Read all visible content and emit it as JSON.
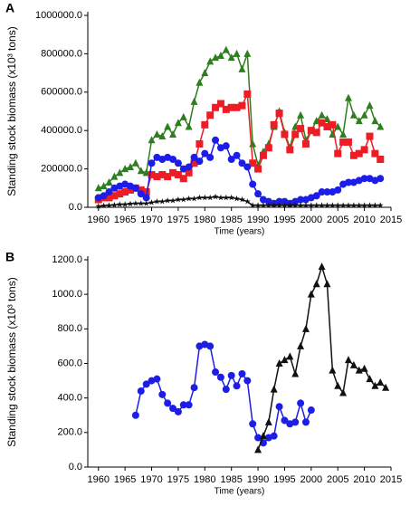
{
  "chart_data": [
    {
      "type": "line",
      "panel_label": "A",
      "xlabel": "Time (years)",
      "ylabel": "Standing stock biomass (x10³ tons)",
      "x": [
        1960,
        1961,
        1962,
        1963,
        1964,
        1965,
        1966,
        1967,
        1968,
        1969,
        1970,
        1971,
        1972,
        1973,
        1974,
        1975,
        1976,
        1977,
        1978,
        1979,
        1980,
        1981,
        1982,
        1983,
        1984,
        1985,
        1986,
        1987,
        1988,
        1989,
        1990,
        1991,
        1992,
        1993,
        1994,
        1995,
        1996,
        1997,
        1998,
        1999,
        2000,
        2001,
        2002,
        2003,
        2004,
        2005,
        2006,
        2007,
        2008,
        2009,
        2010,
        2011,
        2012,
        2013
      ],
      "series": [
        {
          "color": "#2e7d1e",
          "marker": "triangle",
          "values": [
            100000,
            110000,
            130000,
            160000,
            180000,
            200000,
            210000,
            230000,
            190000,
            180000,
            350000,
            380000,
            370000,
            420000,
            380000,
            440000,
            470000,
            420000,
            550000,
            650000,
            700000,
            760000,
            780000,
            790000,
            820000,
            780000,
            800000,
            720000,
            800000,
            330000,
            220000,
            290000,
            330000,
            420000,
            500000,
            390000,
            310000,
            420000,
            480000,
            350000,
            400000,
            450000,
            480000,
            460000,
            380000,
            420000,
            380000,
            570000,
            480000,
            450000,
            480000,
            530000,
            450000,
            420000
          ]
        },
        {
          "color": "#ee1c25",
          "marker": "square",
          "values": [
            40000,
            50000,
            50000,
            60000,
            70000,
            80000,
            90000,
            100000,
            90000,
            80000,
            170000,
            160000,
            170000,
            160000,
            180000,
            170000,
            150000,
            180000,
            230000,
            330000,
            430000,
            480000,
            520000,
            540000,
            510000,
            520000,
            520000,
            530000,
            590000,
            230000,
            200000,
            270000,
            310000,
            430000,
            490000,
            380000,
            300000,
            380000,
            410000,
            330000,
            400000,
            390000,
            440000,
            420000,
            430000,
            280000,
            340000,
            340000,
            270000,
            280000,
            300000,
            370000,
            280000,
            250000
          ]
        },
        {
          "color": "#1d1de8",
          "marker": "circle",
          "values": [
            50000,
            60000,
            80000,
            100000,
            110000,
            120000,
            110000,
            100000,
            70000,
            50000,
            230000,
            260000,
            250000,
            260000,
            250000,
            230000,
            200000,
            210000,
            260000,
            240000,
            280000,
            260000,
            350000,
            310000,
            320000,
            250000,
            270000,
            230000,
            210000,
            120000,
            70000,
            40000,
            30000,
            20000,
            30000,
            30000,
            20000,
            30000,
            40000,
            40000,
            50000,
            60000,
            80000,
            80000,
            80000,
            90000,
            120000,
            130000,
            130000,
            140000,
            150000,
            150000,
            140000,
            150000
          ]
        },
        {
          "color": "#111111",
          "marker": "star",
          "values": [
            5000,
            8000,
            10000,
            12000,
            15000,
            15000,
            18000,
            20000,
            20000,
            20000,
            25000,
            30000,
            30000,
            35000,
            35000,
            40000,
            40000,
            45000,
            45000,
            50000,
            50000,
            50000,
            55000,
            50000,
            50000,
            50000,
            45000,
            40000,
            30000,
            10000,
            10000,
            10000,
            10000,
            10000,
            10000,
            10000,
            10000,
            10000,
            10000,
            10000,
            10000,
            10000,
            10000,
            10000,
            10000,
            10000,
            10000,
            10000,
            10000,
            10000,
            10000,
            10000,
            10000,
            10000
          ]
        }
      ],
      "xlim": [
        1958,
        2015
      ],
      "xticks": [
        1960,
        1965,
        1970,
        1975,
        1980,
        1985,
        1990,
        1995,
        2000,
        2005,
        2010,
        2015
      ],
      "ylim": [
        0,
        1000000
      ],
      "yticks": [
        {
          "value": 0,
          "label": "0.0"
        },
        {
          "value": 200000,
          "label": "200000.0"
        },
        {
          "value": 400000,
          "label": "400000.0"
        },
        {
          "value": 600000,
          "label": "600000.0"
        },
        {
          "value": 800000,
          "label": "800000.0"
        },
        {
          "value": 1000000,
          "label": "1000000.0"
        }
      ]
    },
    {
      "type": "line",
      "panel_label": "B",
      "xlabel": "Time (years)",
      "ylabel": "Standing stock biomass (x10³ tons)",
      "series": [
        {
          "color": "#1d1de8",
          "marker": "circle",
          "x": [
            1967,
            1968,
            1969,
            1970,
            1971,
            1972,
            1973,
            1974,
            1975,
            1976,
            1977,
            1978,
            1979,
            1980,
            1981,
            1982,
            1983,
            1984,
            1985,
            1986,
            1987,
            1988,
            1989,
            1990,
            1991,
            1992,
            1993,
            1994,
            1995,
            1996,
            1997,
            1998,
            1999,
            2000
          ],
          "values": [
            300,
            440,
            480,
            500,
            510,
            420,
            370,
            340,
            320,
            360,
            360,
            460,
            700,
            710,
            700,
            550,
            520,
            450,
            530,
            470,
            540,
            500,
            250,
            170,
            140,
            170,
            180,
            350,
            270,
            250,
            260,
            370,
            260,
            330
          ]
        },
        {
          "color": "#111111",
          "marker": "triangle",
          "x": [
            1990,
            1991,
            1992,
            1993,
            1994,
            1995,
            1996,
            1997,
            1998,
            1999,
            2000,
            2001,
            2002,
            2003,
            2004,
            2005,
            2006,
            2007,
            2008,
            2009,
            2010,
            2011,
            2012,
            2013,
            2014
          ],
          "values": [
            100,
            180,
            260,
            450,
            600,
            620,
            640,
            540,
            700,
            800,
            1000,
            1060,
            1160,
            1060,
            560,
            470,
            430,
            620,
            590,
            560,
            570,
            510,
            470,
            490,
            460
          ]
        }
      ],
      "xlim": [
        1958,
        2015
      ],
      "xticks": [
        1960,
        1965,
        1970,
        1975,
        1980,
        1985,
        1990,
        1995,
        2000,
        2005,
        2010,
        2015
      ],
      "ylim": [
        0,
        1200
      ],
      "yticks": [
        {
          "value": 0,
          "label": "0.0"
        },
        {
          "value": 200,
          "label": "200.0"
        },
        {
          "value": 400,
          "label": "400.0"
        },
        {
          "value": 600,
          "label": "600.0"
        },
        {
          "value": 800,
          "label": "800.0"
        },
        {
          "value": 1000,
          "label": "1000.0"
        },
        {
          "value": 1200,
          "label": "1200.0"
        }
      ]
    }
  ]
}
